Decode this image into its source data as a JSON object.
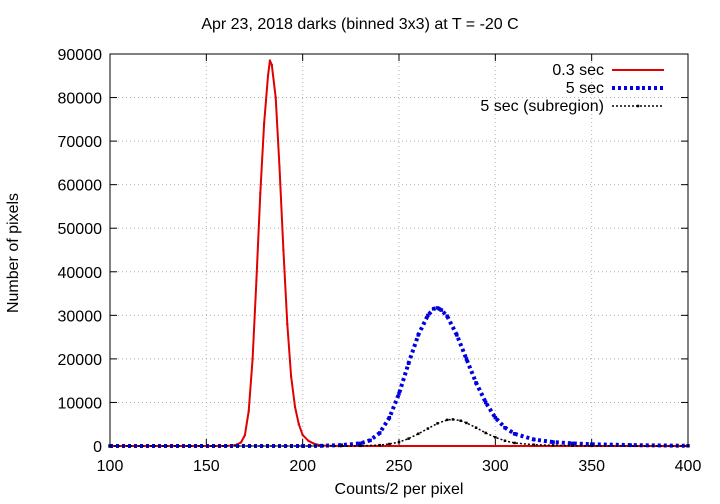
{
  "chart_data": {
    "type": "line",
    "title": "Apr 23, 2018 darks (binned 3x3) at T = -20 C",
    "xlabel": "Counts/2 per pixel",
    "ylabel": "Number of pixels",
    "xlim": [
      100,
      400
    ],
    "ylim": [
      0,
      90000
    ],
    "xticks": [
      100,
      150,
      200,
      250,
      300,
      350,
      400
    ],
    "yticks": [
      0,
      10000,
      20000,
      30000,
      40000,
      50000,
      60000,
      70000,
      80000,
      90000
    ],
    "grid": true,
    "legend_position": "top-right",
    "series": [
      {
        "name": "0.3 sec",
        "color": "#e00000",
        "x": [
          100,
          160,
          165,
          168,
          170,
          172,
          174,
          176,
          178,
          180,
          182,
          183,
          184,
          186,
          188,
          190,
          192,
          194,
          196,
          198,
          200,
          203,
          206,
          210,
          220,
          250,
          300,
          350,
          400
        ],
        "y": [
          0,
          0,
          200,
          800,
          2500,
          8000,
          20000,
          38000,
          58000,
          74000,
          85000,
          88500,
          87500,
          80000,
          64000,
          45000,
          28000,
          16000,
          9000,
          5000,
          2500,
          1200,
          500,
          100,
          0,
          0,
          0,
          0,
          0
        ]
      },
      {
        "name": "5 sec",
        "color": "#0000e0",
        "x": [
          100,
          200,
          210,
          220,
          230,
          235,
          240,
          245,
          250,
          255,
          260,
          265,
          268,
          270,
          272,
          275,
          280,
          285,
          290,
          295,
          300,
          305,
          310,
          320,
          330,
          340,
          350,
          370,
          400
        ],
        "y": [
          0,
          0,
          50,
          200,
          600,
          1300,
          3000,
          6500,
          12000,
          19000,
          25500,
          30000,
          31500,
          31700,
          31200,
          29800,
          25500,
          20000,
          14500,
          10000,
          6500,
          4200,
          2800,
          1500,
          900,
          600,
          400,
          200,
          50
        ]
      },
      {
        "name": "5 sec (subregion)",
        "color": "#000000",
        "x": [
          100,
          220,
          230,
          240,
          245,
          250,
          255,
          260,
          265,
          270,
          275,
          278,
          282,
          285,
          290,
          295,
          300,
          305,
          310,
          320,
          330,
          340,
          350,
          400
        ],
        "y": [
          0,
          0,
          30,
          200,
          450,
          900,
          1700,
          2800,
          4000,
          5200,
          6000,
          6100,
          5800,
          5300,
          4200,
          3000,
          2000,
          1200,
          700,
          300,
          150,
          80,
          30,
          0
        ]
      }
    ]
  }
}
